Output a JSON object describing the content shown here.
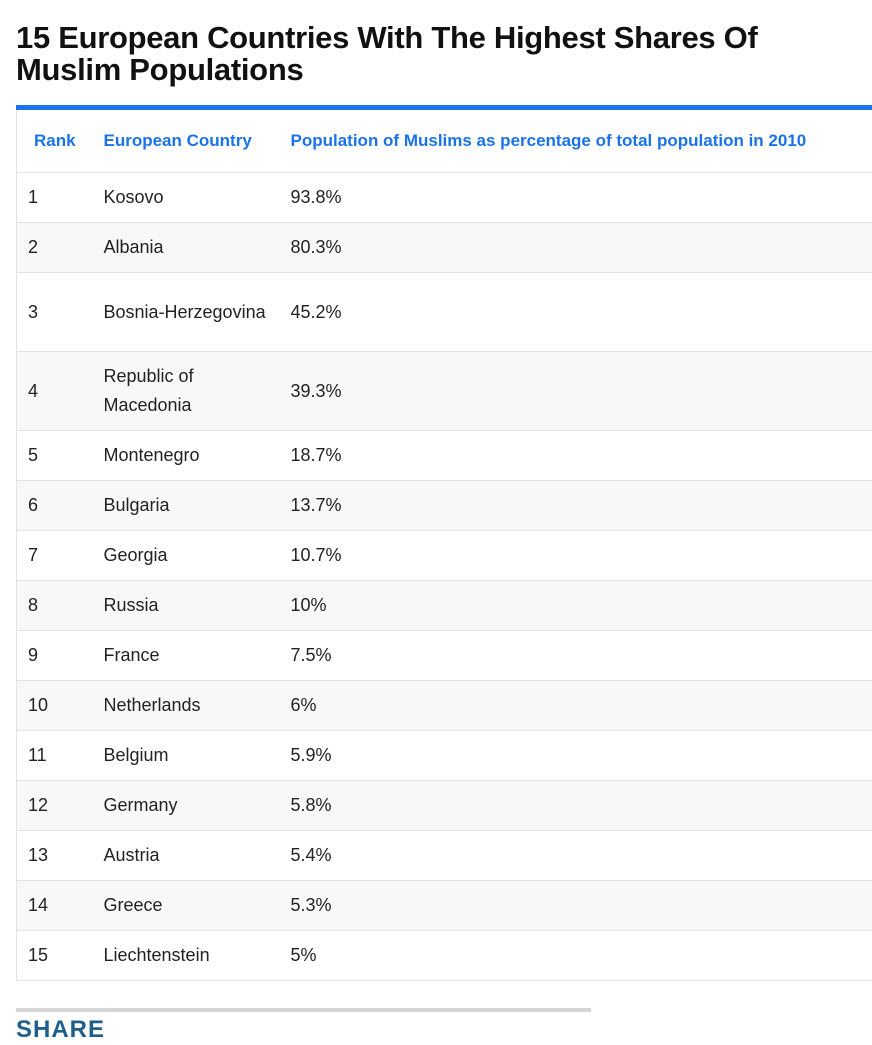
{
  "title": "15 European Countries With The Highest Shares Of Muslim Populations",
  "table": {
    "headers": [
      "Rank",
      "European Country",
      "Population of Muslims as percentage of total population in 2010"
    ],
    "rows": [
      {
        "rank": "1",
        "country": "Kosovo",
        "percent": "93.8%"
      },
      {
        "rank": "2",
        "country": "Albania",
        "percent": "80.3%"
      },
      {
        "rank": "3",
        "country": "Bosnia-Herzegovina",
        "percent": "45.2%"
      },
      {
        "rank": "4",
        "country": "Republic of Macedonia",
        "percent": "39.3%"
      },
      {
        "rank": "5",
        "country": "Montenegro",
        "percent": "18.7%"
      },
      {
        "rank": "6",
        "country": "Bulgaria",
        "percent": "13.7%"
      },
      {
        "rank": "7",
        "country": "Georgia",
        "percent": "10.7%"
      },
      {
        "rank": "8",
        "country": "Russia",
        "percent": "10%"
      },
      {
        "rank": "9",
        "country": "France",
        "percent": "7.5%"
      },
      {
        "rank": "10",
        "country": "Netherlands",
        "percent": "6%"
      },
      {
        "rank": "11",
        "country": "Belgium",
        "percent": "5.9%"
      },
      {
        "rank": "12",
        "country": "Germany",
        "percent": "5.8%"
      },
      {
        "rank": "13",
        "country": "Austria",
        "percent": "5.4%"
      },
      {
        "rank": "14",
        "country": "Greece",
        "percent": "5.3%"
      },
      {
        "rank": "15",
        "country": "Liechtenstein",
        "percent": "5%"
      }
    ]
  },
  "footer": {
    "share_label": "SHARE"
  },
  "colors": {
    "accent": "#1a73e8",
    "share": "#1f5f8b"
  }
}
